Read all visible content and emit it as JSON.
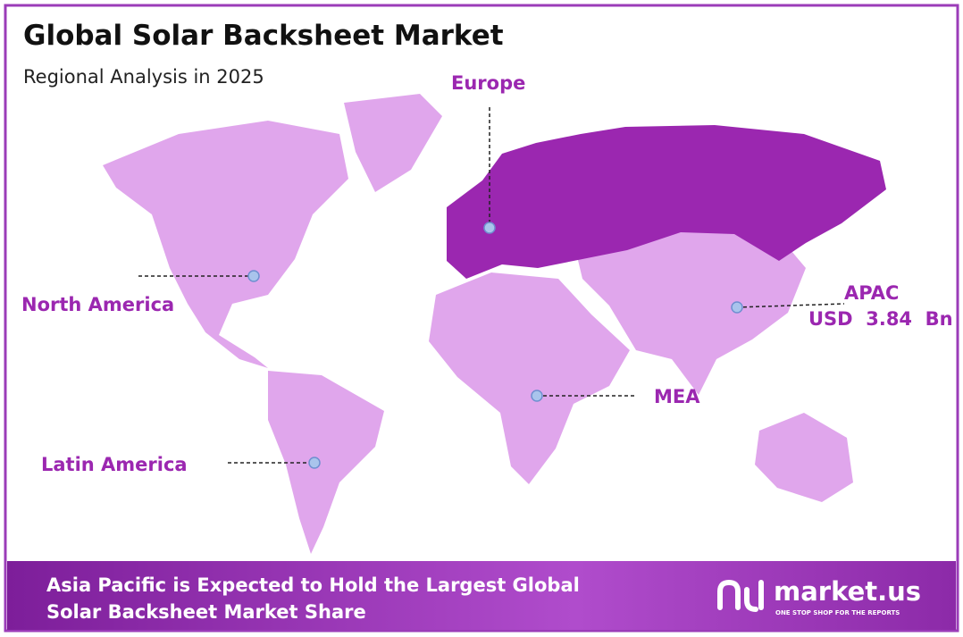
{
  "header": {
    "title": "Global Solar Backsheet Market",
    "subtitle": "Regional Analysis in 2025"
  },
  "regions": [
    {
      "name": "Europe"
    },
    {
      "name": "North America"
    },
    {
      "name": "APAC",
      "value": "USD  3.84  Bn"
    },
    {
      "name": "MEA"
    },
    {
      "name": "Latin America"
    }
  ],
  "footer": {
    "text_line1": "Asia Pacific is Expected to Hold the Largest Global",
    "text_line2": "Solar Backsheet Market Share",
    "logo": "market.us",
    "tagline": "ONE STOP SHOP FOR THE REPORTS"
  }
}
